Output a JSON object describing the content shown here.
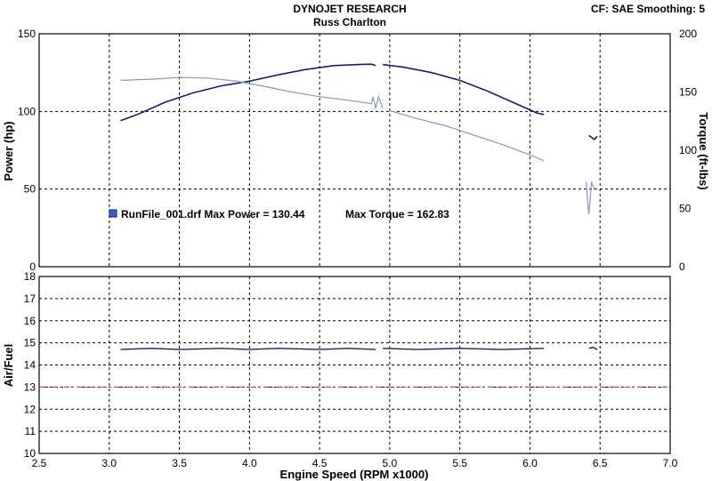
{
  "header": {
    "title": "DYNOJET RESEARCH",
    "subtitle": "Russ Charlton",
    "cf_info": "CF: SAE  Smoothing: 5"
  },
  "legend": {
    "run_text": "RunFile_001.drf Max Power = 130.44",
    "torque_text": "Max Torque = 162.83",
    "swatch_color": "#3b5bdb"
  },
  "chart_data": [
    {
      "type": "line",
      "xlabel": "Engine Speed  (RPM x1000)",
      "ylabel": "Power (hp)",
      "ylabel_right": "Torque (ft-lbs)",
      "xlim": [
        2.5,
        7.0
      ],
      "ylim": [
        0,
        150
      ],
      "ylim_right": [
        0,
        200
      ],
      "x_ticks": [
        "2.5",
        "3.0",
        "3.5",
        "4.0",
        "4.5",
        "5.0",
        "5.5",
        "6.0",
        "6.5",
        "7.0"
      ],
      "y_ticks": [
        "0",
        "50",
        "100",
        "150"
      ],
      "y_ticks_right": [
        "0",
        "50",
        "100",
        "150",
        "200"
      ],
      "grid": true,
      "series": [
        {
          "axis": "left",
          "color": "#1a1f6e",
          "segments": [
            [
              [
                3.08,
                94
              ],
              [
                3.2,
                98
              ],
              [
                3.4,
                106
              ],
              [
                3.6,
                112
              ],
              [
                3.8,
                116.5
              ],
              [
                4.0,
                119.5
              ],
              [
                4.2,
                123.5
              ],
              [
                4.4,
                127
              ],
              [
                4.6,
                129.5
              ],
              [
                4.8,
                130.3
              ],
              [
                4.87,
                130.4
              ],
              [
                4.9,
                129.5
              ]
            ],
            [
              [
                4.95,
                130.2
              ],
              [
                5.1,
                128.5
              ],
              [
                5.3,
                125
              ],
              [
                5.5,
                120
              ],
              [
                5.7,
                113
              ],
              [
                5.9,
                105
              ],
              [
                6.05,
                99
              ],
              [
                6.1,
                98
              ]
            ],
            [
              [
                6.42,
                84.5
              ],
              [
                6.46,
                82
              ],
              [
                6.48,
                84
              ]
            ]
          ]
        },
        {
          "axis": "right",
          "color": "#8a96c8",
          "segments": [
            [
              [
                3.08,
                160
              ],
              [
                3.3,
                161
              ],
              [
                3.5,
                162.5
              ],
              [
                3.7,
                162
              ],
              [
                3.9,
                159.5
              ],
              [
                4.1,
                155
              ],
              [
                4.3,
                150
              ],
              [
                4.5,
                146
              ],
              [
                4.7,
                143
              ],
              [
                4.87,
                140
              ],
              [
                4.88,
                146
              ],
              [
                4.9,
                136
              ],
              [
                4.92,
                146
              ],
              [
                4.95,
                136
              ]
            ],
            [
              [
                5.0,
                134
              ],
              [
                5.2,
                127
              ],
              [
                5.4,
                121
              ],
              [
                5.6,
                113
              ],
              [
                5.8,
                105
              ],
              [
                6.0,
                96
              ],
              [
                6.1,
                91
              ]
            ],
            [
              [
                6.4,
                73
              ],
              [
                6.42,
                45
              ],
              [
                6.44,
                73
              ],
              [
                6.46,
                66
              ]
            ]
          ]
        }
      ]
    },
    {
      "type": "line",
      "ylabel": "Air/Fuel",
      "xlim": [
        2.5,
        7.0
      ],
      "ylim": [
        10,
        18
      ],
      "y_ticks": [
        "10",
        "11",
        "12",
        "13",
        "14",
        "15",
        "16",
        "17",
        "18"
      ],
      "grid": true,
      "reference_line": {
        "y": 13.0,
        "color": "#c0504d"
      },
      "series": [
        {
          "color": "#1a1f6e",
          "segments": [
            [
              [
                3.08,
                14.7
              ],
              [
                3.3,
                14.75
              ],
              [
                3.5,
                14.7
              ],
              [
                3.8,
                14.75
              ],
              [
                4.0,
                14.7
              ],
              [
                4.2,
                14.75
              ],
              [
                4.5,
                14.7
              ],
              [
                4.7,
                14.75
              ],
              [
                4.9,
                14.7
              ]
            ],
            [
              [
                4.95,
                14.75
              ],
              [
                5.2,
                14.7
              ],
              [
                5.5,
                14.75
              ],
              [
                5.8,
                14.7
              ],
              [
                6.1,
                14.75
              ]
            ],
            [
              [
                6.42,
                14.75
              ],
              [
                6.45,
                14.8
              ],
              [
                6.48,
                14.7
              ]
            ]
          ]
        }
      ]
    }
  ]
}
